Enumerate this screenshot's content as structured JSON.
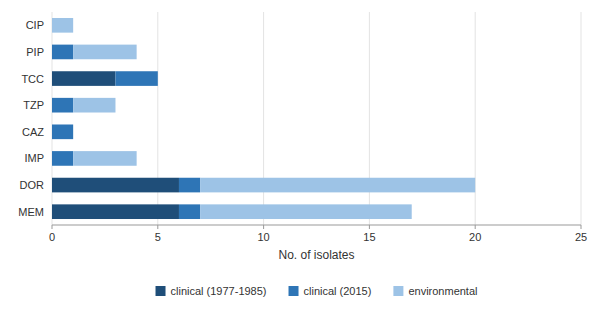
{
  "chart_data": {
    "type": "bar",
    "orientation": "horizontal",
    "stacked": true,
    "categories": [
      "MEM",
      "DOR",
      "IMP",
      "CAZ",
      "TZP",
      "TCC",
      "PIP",
      "CIP"
    ],
    "series": [
      {
        "name": "clinical (1977-1985)",
        "color": "#1f4e79",
        "values": [
          6,
          6,
          0,
          0,
          0,
          3,
          0,
          0
        ]
      },
      {
        "name": "clinical (2015)",
        "color": "#2e75b6",
        "values": [
          1,
          1,
          1,
          1,
          1,
          2,
          1,
          0
        ]
      },
      {
        "name": "environmental",
        "color": "#9dc3e6",
        "values": [
          10,
          13,
          3,
          0,
          2,
          0,
          3,
          1
        ]
      }
    ],
    "x_label": "No. of isolates",
    "xlim": [
      0,
      25
    ],
    "xticks": [
      0,
      5,
      10,
      15,
      20,
      25
    ],
    "grid": true,
    "legend": "bottom"
  }
}
